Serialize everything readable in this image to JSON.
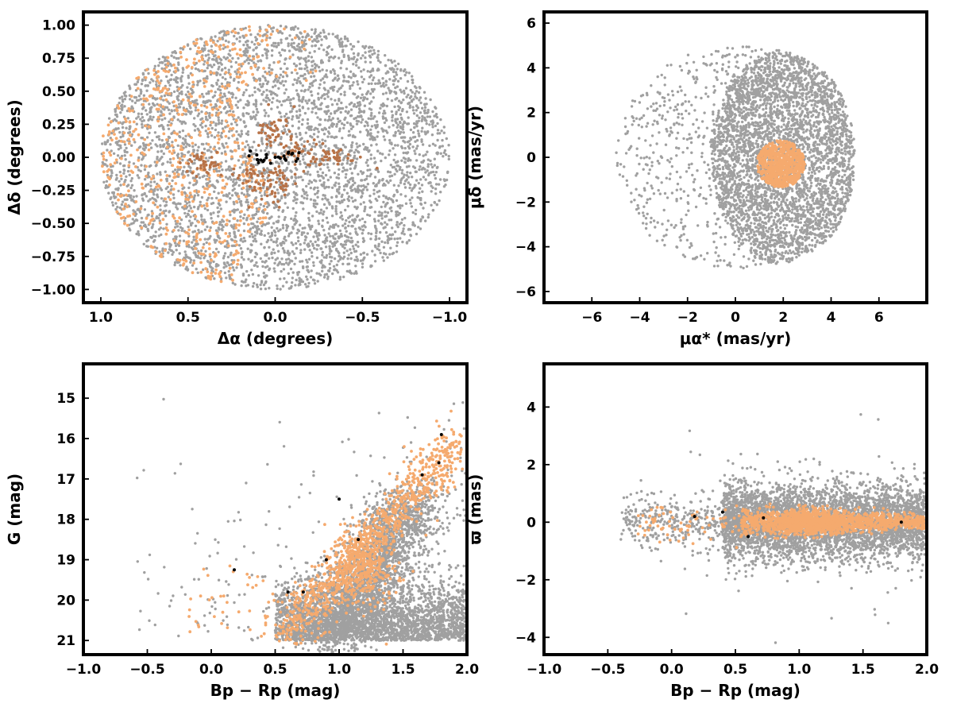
{
  "colors": {
    "field_stars": "#a0a0a0",
    "members_light": "#f5aa6e",
    "members_brown": "#b87348",
    "members_core": "#000000",
    "frame": "#000000"
  },
  "chart_data": [
    {
      "id": "sky",
      "type": "scatter",
      "xlabel": "Δα (degrees)",
      "ylabel": "Δδ (degrees)",
      "xlim": [
        1.1,
        -1.1
      ],
      "ylim": [
        -1.1,
        1.1
      ],
      "x_reversed": true,
      "xticks": [
        1.0,
        0.5,
        0.0,
        -0.5,
        -1.0
      ],
      "xtick_labels": [
        "1.0",
        "0.5",
        "0.0",
        "−0.5",
        "−1.0"
      ],
      "yticks": [
        1.0,
        0.75,
        0.5,
        0.25,
        0.0,
        -0.25,
        -0.5,
        -0.75,
        -1.0
      ],
      "ytick_labels": [
        "1.00",
        "0.75",
        "0.50",
        "0.25",
        "0.00",
        "−0.25",
        "−0.50",
        "−0.75",
        "−1.00"
      ],
      "grid": false,
      "series": [
        {
          "color_key": "field_stars",
          "region": "circle of radius 1 deg, ~5000 stars",
          "points": [
            [
              0.0,
              0.0
            ],
            [
              0.5,
              0.5
            ],
            [
              -0.5,
              0.5
            ],
            [
              -0.5,
              -0.5
            ],
            [
              0.5,
              -0.5
            ],
            [
              0.0,
              0.95
            ],
            [
              0.0,
              -0.95
            ],
            [
              -0.95,
              0.0
            ],
            [
              0.95,
              0.0
            ]
          ]
        },
        {
          "color_key": "members_light",
          "region": "eastern half, large Δα (0.2 to 1.0 deg)",
          "points": [
            [
              0.8,
              0.6
            ],
            [
              0.6,
              0.3
            ],
            [
              0.85,
              0.0
            ],
            [
              0.7,
              -0.3
            ],
            [
              0.5,
              -0.6
            ],
            [
              0.3,
              0.9
            ],
            [
              -0.2,
              0.65
            ],
            [
              0.0,
              -0.35
            ]
          ]
        },
        {
          "color_key": "members_brown",
          "region": "central clumps",
          "points": [
            [
              0.02,
              0.2
            ],
            [
              0.1,
              -0.15
            ],
            [
              -0.35,
              0.0
            ],
            [
              -0.12,
              0.05
            ],
            [
              0.4,
              -0.05
            ]
          ]
        },
        {
          "color_key": "members_core",
          "region": "cluster core",
          "points": [
            [
              0.1,
              -0.02
            ],
            [
              0.05,
              0.02
            ],
            [
              0.0,
              0.0
            ],
            [
              -0.05,
              0.01
            ],
            [
              -0.1,
              0.03
            ],
            [
              0.15,
              0.01
            ],
            [
              -0.12,
              -0.03
            ]
          ]
        }
      ]
    },
    {
      "id": "pm",
      "type": "scatter",
      "xlabel": "μα* (mas/yr)",
      "ylabel": "μδ (mas/yr)",
      "xlim": [
        -8,
        8
      ],
      "ylim": [
        -6.5,
        6.5
      ],
      "xticks": [
        -6,
        -4,
        -2,
        0,
        2,
        4,
        6
      ],
      "xtick_labels": [
        "−6",
        "−4",
        "−2",
        "0",
        "2",
        "4",
        "6"
      ],
      "yticks": [
        -6,
        -4,
        -2,
        0,
        2,
        4,
        6
      ],
      "ytick_labels": [
        "−6",
        "−4",
        "−2",
        "0",
        "2",
        "4",
        "6"
      ],
      "grid": false,
      "series": [
        {
          "color_key": "field_stars",
          "region": "dense disk centered (2.0, 0.0) radius ~3, sparse tail to μα* = -5",
          "points": [
            [
              2.0,
              0.0
            ],
            [
              4.0,
              1.0
            ],
            [
              0.0,
              2.0
            ],
            [
              -2.0,
              0.0
            ],
            [
              -4.5,
              0.0
            ],
            [
              2.0,
              4.5
            ],
            [
              2.0,
              -4.5
            ]
          ]
        },
        {
          "color_key": "members_light",
          "region": "compact clump centered (1.9, -0.3) radius ~1",
          "points": [
            [
              1.9,
              -0.3
            ],
            [
              1.2,
              -0.5
            ],
            [
              2.6,
              0.2
            ],
            [
              1.8,
              -1.2
            ],
            [
              2.2,
              0.6
            ]
          ]
        }
      ]
    },
    {
      "id": "cmd",
      "type": "scatter",
      "xlabel": "Bp − Rp (mag)",
      "ylabel": "G (mag)",
      "xlim": [
        -1.0,
        2.0
      ],
      "ylim": [
        21.35,
        14.15
      ],
      "y_reversed": true,
      "xticks": [
        -1.0,
        -0.5,
        0.0,
        0.5,
        1.0,
        1.5,
        2.0
      ],
      "xtick_labels": [
        "−1.0",
        "−0.5",
        "0.0",
        "0.5",
        "1.0",
        "1.5",
        "2.0"
      ],
      "yticks": [
        21,
        20,
        19,
        18,
        17,
        16,
        15
      ],
      "ytick_labels": [
        "21",
        "20",
        "19",
        "18",
        "17",
        "16",
        "15"
      ],
      "grid": false,
      "series": [
        {
          "color_key": "field_stars",
          "region": "faint band G 19-21, main clump near Bp-Rp 1.2",
          "points": [
            [
              1.2,
              19.5
            ],
            [
              1.5,
              20.8
            ],
            [
              0.6,
              20.8
            ],
            [
              1.8,
              20.5
            ],
            [
              1.0,
              18.0
            ],
            [
              1.4,
              17.5
            ],
            [
              0.2,
              20.5
            ]
          ]
        },
        {
          "color_key": "members_light",
          "region": "sequence from (0.6, 20.8) to (1.95, 16.0)",
          "points": [
            [
              0.6,
              20.8
            ],
            [
              1.0,
              19.8
            ],
            [
              1.2,
              19.0
            ],
            [
              1.35,
              18.2
            ],
            [
              1.5,
              17.5
            ],
            [
              1.7,
              16.8
            ],
            [
              1.9,
              16.2
            ],
            [
              -0.2,
              20.0
            ],
            [
              0.3,
              19.2
            ]
          ]
        },
        {
          "color_key": "members_core",
          "region": "sparse along sequence",
          "points": [
            [
              0.6,
              19.8
            ],
            [
              0.72,
              19.8
            ],
            [
              0.9,
              19.0
            ],
            [
              1.15,
              18.5
            ],
            [
              1.0,
              17.5
            ],
            [
              1.65,
              16.9
            ],
            [
              1.78,
              16.6
            ],
            [
              1.8,
              15.9
            ],
            [
              0.18,
              19.25
            ]
          ]
        }
      ]
    },
    {
      "id": "plx",
      "type": "scatter",
      "xlabel": "Bp − Rp (mag)",
      "ylabel": "ϖ (mas)",
      "xlim": [
        -1.0,
        2.0
      ],
      "ylim": [
        -4.6,
        5.5
      ],
      "xticks": [
        -1.0,
        -0.5,
        0.0,
        0.5,
        1.0,
        1.5,
        2.0
      ],
      "xtick_labels": [
        "−1.0",
        "−0.5",
        "0.0",
        "0.5",
        "1.0",
        "1.5",
        "2.0"
      ],
      "yticks": [
        4,
        2,
        0,
        -2,
        -4
      ],
      "ytick_labels": [
        "4",
        "2",
        "0",
        "−2",
        "−4"
      ],
      "grid": false,
      "series": [
        {
          "color_key": "field_stars",
          "region": "band around ϖ = 0, Bp-Rp 0.5-2.0, scatter to ±3",
          "points": [
            [
              1.0,
              0.0
            ],
            [
              1.5,
              0.5
            ],
            [
              0.5,
              -0.5
            ],
            [
              1.2,
              2.0
            ],
            [
              1.4,
              -2.0
            ],
            [
              0.85,
              5.0
            ],
            [
              0.9,
              -4.1
            ]
          ]
        },
        {
          "color_key": "members_light",
          "region": "tight band ϖ ≈ 0.05, densest at Bp-Rp 1.1",
          "points": [
            [
              1.1,
              0.0
            ],
            [
              0.6,
              0.1
            ],
            [
              1.5,
              0.0
            ],
            [
              1.9,
              0.0
            ],
            [
              0.0,
              0.2
            ],
            [
              0.3,
              -0.5
            ]
          ]
        },
        {
          "color_key": "members_core",
          "region": "within band",
          "points": [
            [
              0.18,
              0.2
            ],
            [
              0.4,
              0.35
            ],
            [
              0.6,
              -0.5
            ],
            [
              0.72,
              0.15
            ],
            [
              1.8,
              0.0
            ]
          ]
        }
      ]
    }
  ]
}
